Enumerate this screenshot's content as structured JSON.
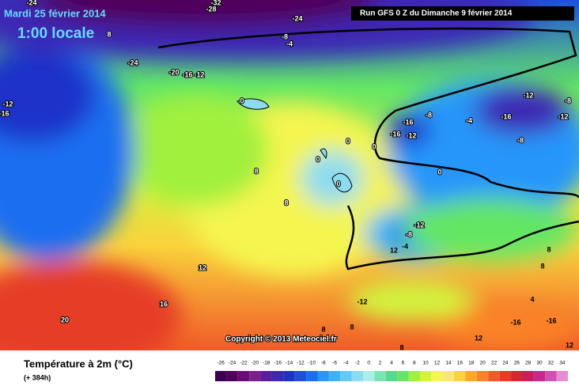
{
  "header": {
    "date": "Mardi 25 février 2014",
    "time": "1:00 locale",
    "run": "Run GFS 0 Z du Dimanche 9 février 2014",
    "copyright": "Copyright © 2013 Meteociel.fr"
  },
  "footer": {
    "title": "Température à 2m (°C)",
    "lead": "(+ 384h)"
  },
  "colorbar": {
    "ticks": [
      -26,
      -24,
      -22,
      -20,
      -18,
      -16,
      -14,
      -12,
      -10,
      -8,
      -6,
      -4,
      -2,
      0,
      2,
      4,
      6,
      8,
      10,
      12,
      14,
      16,
      18,
      20,
      22,
      24,
      26,
      28,
      30,
      32,
      34
    ]
  },
  "map": {
    "contour_labels": [
      -24,
      -28,
      -32,
      -24,
      -8,
      -4,
      -24,
      -20,
      -16,
      -12,
      -12,
      -16,
      8,
      -12,
      -8,
      -16,
      -12,
      -8,
      -16,
      -16,
      -12,
      -4,
      -8,
      0,
      0,
      0,
      0,
      0,
      0,
      8,
      8,
      -12,
      -8,
      -4,
      12,
      16,
      20,
      -12,
      12,
      8,
      4,
      8,
      -16,
      -16,
      12,
      12,
      8,
      8,
      8
    ]
  }
}
